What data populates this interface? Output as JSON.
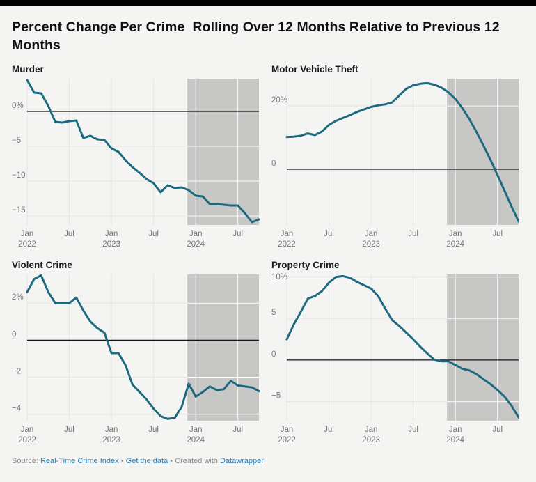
{
  "page": {
    "background": "#f4f4f2",
    "top_border_color": "#000000"
  },
  "title": "Percent Change Per Crime  Rolling Over 12 Months Relative to Previous 12 Months",
  "footer": {
    "source_label": "Source: ",
    "source_link": "Real-Time Crime Index",
    "separator": "•",
    "get_data_link": "Get the data",
    "created_label": "Created with ",
    "tool_link": "Datawrapper",
    "link_color": "#2a83c0"
  },
  "chart_data": [
    {
      "type": "line",
      "title": "Murder",
      "unit": "%",
      "line_color": "#1d6a80",
      "highlight": {
        "from_month_index": 22.8,
        "color": "#c7c7c6"
      },
      "ylim": [
        -16.3,
        4.7
      ],
      "yticks": [
        {
          "v": 0,
          "label": "0%"
        },
        {
          "v": -5,
          "label": "−5"
        },
        {
          "v": -10,
          "label": "−10"
        },
        {
          "v": -15,
          "label": "−15"
        }
      ],
      "xticks": [
        {
          "m": 0,
          "l1": "Jan",
          "l2": "2022"
        },
        {
          "m": 6,
          "l1": "Jul"
        },
        {
          "m": 12,
          "l1": "Jan",
          "l2": "2023"
        },
        {
          "m": 18,
          "l1": "Jul"
        },
        {
          "m": 24,
          "l1": "Jan",
          "l2": "2024"
        },
        {
          "m": 30,
          "l1": "Jul"
        }
      ],
      "values": [
        4.5,
        2.7,
        2.6,
        0.8,
        -1.5,
        -1.6,
        -1.4,
        -1.3,
        -3.8,
        -3.5,
        -4.0,
        -4.1,
        -5.3,
        -5.8,
        -7.0,
        -8.0,
        -8.8,
        -9.7,
        -10.3,
        -11.6,
        -10.6,
        -11.0,
        -10.9,
        -11.3,
        -12.1,
        -12.2,
        -13.3,
        -13.3,
        -13.4,
        -13.5,
        -13.5,
        -14.6,
        -15.9,
        -15.5
      ]
    },
    {
      "type": "line",
      "title": "Motor Vehicle Theft",
      "unit": "%",
      "line_color": "#1d6a80",
      "highlight": {
        "from_month_index": 22.8,
        "color": "#c7c7c6"
      },
      "ylim": [
        -17.6,
        28.6
      ],
      "yticks": [
        {
          "v": 20,
          "label": "20%"
        },
        {
          "v": 0,
          "label": "0"
        }
      ],
      "xticks": [
        {
          "m": 0,
          "l1": "Jan",
          "l2": "2022"
        },
        {
          "m": 6,
          "l1": "Jul"
        },
        {
          "m": 12,
          "l1": "Jan",
          "l2": "2023"
        },
        {
          "m": 18,
          "l1": "Jul"
        },
        {
          "m": 24,
          "l1": "Jan",
          "l2": "2024"
        },
        {
          "m": 30,
          "l1": "Jul"
        }
      ],
      "values": [
        10.2,
        10.3,
        10.6,
        11.3,
        10.8,
        11.9,
        14.0,
        15.3,
        16.2,
        17.1,
        18.1,
        18.9,
        19.7,
        20.2,
        20.5,
        21.1,
        23.3,
        25.4,
        26.5,
        27.0,
        27.2,
        26.7,
        25.8,
        24.3,
        22.2,
        19.3,
        15.8,
        11.8,
        7.5,
        3.0,
        -1.8,
        -6.8,
        -11.8,
        -16.5
      ]
    },
    {
      "type": "line",
      "title": "Violent Crime",
      "unit": "%",
      "line_color": "#1d6a80",
      "highlight": {
        "from_month_index": 22.8,
        "color": "#c7c7c6"
      },
      "ylim": [
        -4.35,
        3.55
      ],
      "yticks": [
        {
          "v": 2,
          "label": "2%"
        },
        {
          "v": 0,
          "label": "0"
        },
        {
          "v": -2,
          "label": "−2"
        },
        {
          "v": -4,
          "label": "−4"
        }
      ],
      "xticks": [
        {
          "m": 0,
          "l1": "Jan",
          "l2": "2022"
        },
        {
          "m": 6,
          "l1": "Jul"
        },
        {
          "m": 12,
          "l1": "Jan",
          "l2": "2023"
        },
        {
          "m": 18,
          "l1": "Jul"
        },
        {
          "m": 24,
          "l1": "Jan",
          "l2": "2024"
        },
        {
          "m": 30,
          "l1": "Jul"
        }
      ],
      "values": [
        2.6,
        3.3,
        3.5,
        2.6,
        2.0,
        2.0,
        2.0,
        2.3,
        1.6,
        1.0,
        0.65,
        0.4,
        -0.7,
        -0.7,
        -1.35,
        -2.4,
        -2.8,
        -3.2,
        -3.7,
        -4.1,
        -4.25,
        -4.2,
        -3.6,
        -2.35,
        -3.05,
        -2.8,
        -2.5,
        -2.7,
        -2.65,
        -2.2,
        -2.45,
        -2.5,
        -2.55,
        -2.75
      ]
    },
    {
      "type": "line",
      "title": "Property Crime",
      "unit": "%",
      "line_color": "#1d6a80",
      "highlight": {
        "from_month_index": 22.8,
        "color": "#c7c7c6"
      },
      "ylim": [
        -7.3,
        10.3
      ],
      "yticks": [
        {
          "v": 10,
          "label": "10%"
        },
        {
          "v": 5,
          "label": "5"
        },
        {
          "v": 0,
          "label": "0"
        },
        {
          "v": -5,
          "label": "−5"
        }
      ],
      "xticks": [
        {
          "m": 0,
          "l1": "Jan",
          "l2": "2022"
        },
        {
          "m": 6,
          "l1": "Jul"
        },
        {
          "m": 12,
          "l1": "Jan",
          "l2": "2023"
        },
        {
          "m": 18,
          "l1": "Jul"
        },
        {
          "m": 24,
          "l1": "Jan",
          "l2": "2024"
        },
        {
          "m": 30,
          "l1": "Jul"
        }
      ],
      "values": [
        2.5,
        4.3,
        5.8,
        7.4,
        7.7,
        8.3,
        9.3,
        10.0,
        10.1,
        9.9,
        9.4,
        9.0,
        8.6,
        7.7,
        6.2,
        4.8,
        4.1,
        3.3,
        2.5,
        1.6,
        0.8,
        0.05,
        -0.15,
        -0.15,
        -0.6,
        -1.05,
        -1.25,
        -1.7,
        -2.3,
        -2.9,
        -3.6,
        -4.4,
        -5.5,
        -6.9
      ]
    }
  ],
  "x_categories": [
    "Jan 2022",
    "Feb 2022",
    "Mar 2022",
    "Apr 2022",
    "May 2022",
    "Jun 2022",
    "Jul 2022",
    "Aug 2022",
    "Sep 2022",
    "Oct 2022",
    "Nov 2022",
    "Dec 2022",
    "Jan 2023",
    "Feb 2023",
    "Mar 2023",
    "Apr 2023",
    "May 2023",
    "Jun 2023",
    "Jul 2023",
    "Aug 2023",
    "Sep 2023",
    "Oct 2023",
    "Nov 2023",
    "Dec 2023",
    "Jan 2024",
    "Feb 2024",
    "Mar 2024",
    "Apr 2024",
    "May 2024",
    "Jun 2024",
    "Jul 2024",
    "Aug 2024",
    "Sep 2024",
    "Oct 2024"
  ]
}
